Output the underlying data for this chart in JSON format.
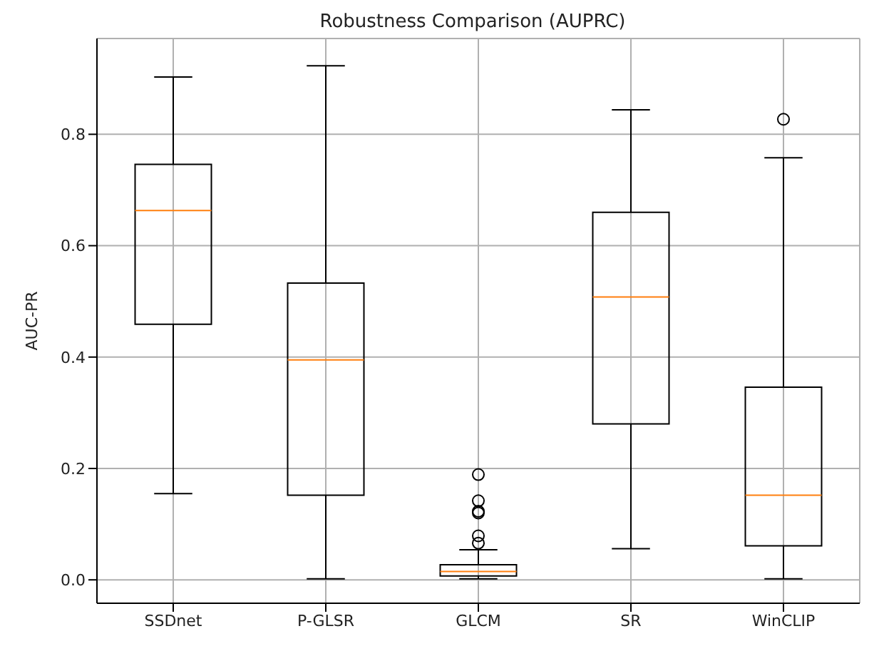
{
  "chart_data": {
    "type": "box",
    "title": "Robustness Comparison (AUPRC)",
    "ylabel": "AUC-PR",
    "categories": [
      "SSDnet",
      "P-GLSR",
      "GLCM",
      "SR",
      "WinCLIP"
    ],
    "boxes": [
      {
        "low": 0.155,
        "q1": 0.459,
        "median": 0.663,
        "q3": 0.746,
        "high": 0.903
      },
      {
        "low": 0.002,
        "q1": 0.152,
        "median": 0.395,
        "q3": 0.533,
        "high": 0.923
      },
      {
        "low": 0.002,
        "q1": 0.007,
        "median": 0.015,
        "q3": 0.027,
        "high": 0.054,
        "outliers": [
          0.189,
          0.142,
          0.123,
          0.12,
          0.079,
          0.066
        ]
      },
      {
        "low": 0.056,
        "q1": 0.28,
        "median": 0.508,
        "q3": 0.66,
        "high": 0.844
      },
      {
        "low": 0.002,
        "q1": 0.061,
        "median": 0.152,
        "q3": 0.346,
        "high": 0.758,
        "outliers": [
          0.827
        ]
      }
    ],
    "color": "#000000",
    "ylim": [
      -0.042,
      0.972
    ],
    "yticks": [
      {
        "value": 0,
        "label": "0.0"
      },
      {
        "value": 0.2,
        "label": "0.2"
      },
      {
        "value": 0.4,
        "label": "0.4"
      },
      {
        "value": 0.6,
        "label": "0.6"
      },
      {
        "value": 0.8,
        "label": "0.8"
      }
    ],
    "grid": true
  }
}
